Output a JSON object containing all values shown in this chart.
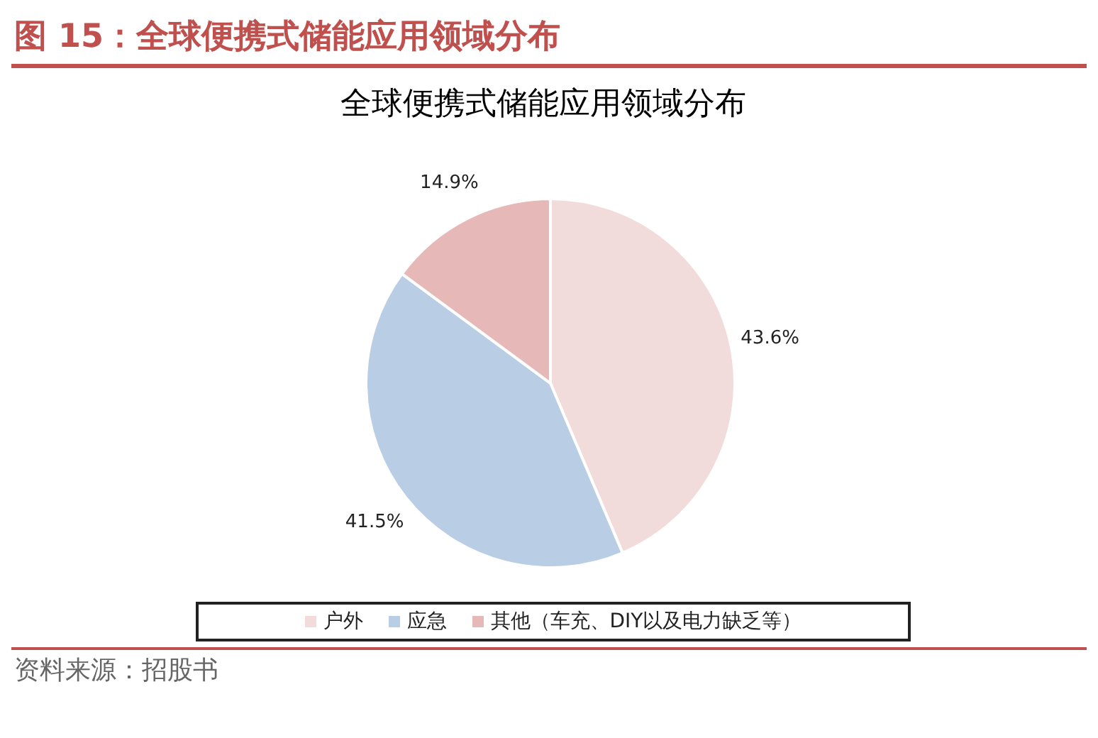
{
  "chart_data": {
    "type": "pie",
    "title": "图 15：全球便携式储能应用领域分布",
    "subtitle": "全球便携式储能应用领域分布",
    "categories": [
      "户外",
      "应急",
      "其他（车充、DIY以及电力缺乏等）"
    ],
    "values": [
      43.6,
      41.5,
      14.9
    ],
    "colors": [
      "#f2dcdb",
      "#b9cde5",
      "#e6b9b8"
    ],
    "value_labels": [
      "43.6%",
      "41.5%",
      "14.9%"
    ],
    "legend": "bottom",
    "annotations": [
      "资料来源：招股书"
    ]
  }
}
